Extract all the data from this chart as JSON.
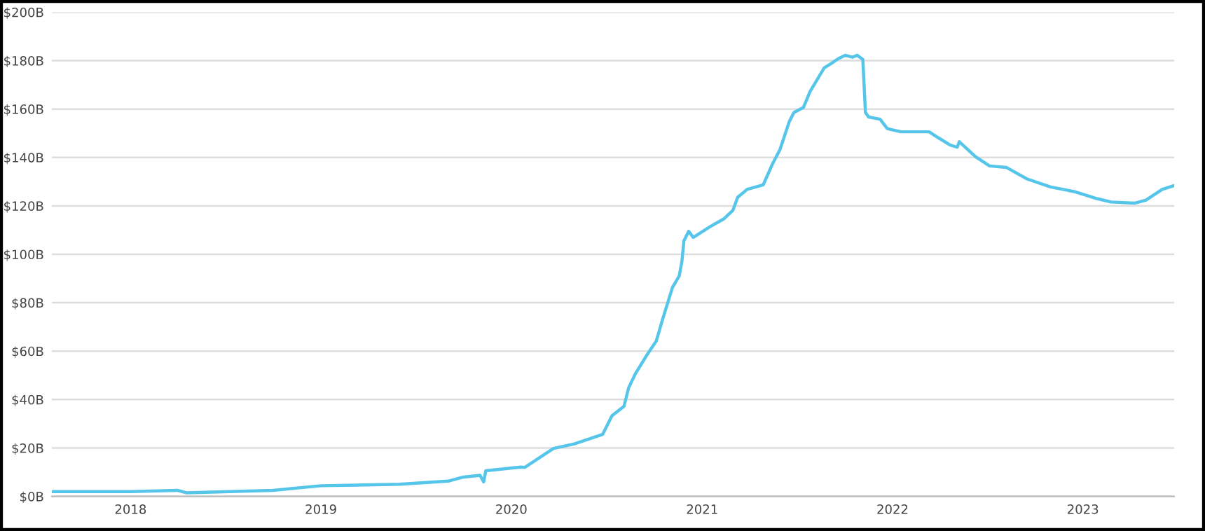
{
  "chart_data": {
    "type": "line",
    "x": [
      "2017-08-03",
      "2018-01-01",
      "2018-04-01",
      "2018-04-18",
      "2018-10-01",
      "2019-01-01",
      "2019-06-01",
      "2019-09-02",
      "2019-09-29",
      "2019-11-02",
      "2019-11-09",
      "2019-11-13",
      "2020-01-19",
      "2020-01-27",
      "2020-03-22",
      "2020-05-01",
      "2020-06-24",
      "2020-07-12",
      "2020-08-04",
      "2020-08-13",
      "2020-08-26",
      "2020-09-17",
      "2020-10-05",
      "2020-10-18",
      "2020-11-05",
      "2020-11-18",
      "2020-11-23",
      "2020-11-27",
      "2020-12-06",
      "2020-12-15",
      "2021-01-16",
      "2021-02-12",
      "2021-03-01",
      "2021-03-10",
      "2021-03-28",
      "2021-04-28",
      "2021-05-16",
      "2021-05-30",
      "2021-06-17",
      "2021-06-26",
      "2021-07-14",
      "2021-07-27",
      "2021-08-23",
      "2021-09-06",
      "2021-09-19",
      "2021-10-02",
      "2021-10-16",
      "2021-10-25",
      "2021-11-05",
      "2021-11-10",
      "2021-11-16",
      "2021-12-08",
      "2021-12-22",
      "2022-01-17",
      "2022-03-12",
      "2022-03-30",
      "2022-04-21",
      "2022-05-05",
      "2022-05-09",
      "2022-06-09",
      "2022-07-06",
      "2022-08-07",
      "2022-09-16",
      "2022-10-31",
      "2022-12-15",
      "2023-01-28",
      "2023-02-24",
      "2023-04-10",
      "2023-05-02",
      "2023-06-02",
      "2023-06-25"
    ],
    "series": [
      {
        "color": "#56c5ea",
        "values": [
          2,
          2,
          2.5,
          1.5,
          2.5,
          4.4,
          5,
          6.3,
          7.9,
          8.7,
          6,
          10.6,
          12.1,
          12,
          19.8,
          21.7,
          25.6,
          33.3,
          37.2,
          44.9,
          50.7,
          58.4,
          64.2,
          73.8,
          86.3,
          91.1,
          96.9,
          105.6,
          109.5,
          107,
          111.4,
          114.7,
          118.2,
          123.5,
          126.8,
          128.7,
          137.4,
          143.2,
          154.8,
          158.6,
          160.6,
          167.3,
          177,
          178.9,
          180.8,
          182.2,
          181.4,
          182.2,
          180.5,
          158.6,
          156.7,
          155.8,
          151.9,
          150.6,
          150.6,
          148.1,
          145.2,
          144.2,
          146.5,
          140.3,
          136.5,
          135.9,
          131.1,
          127.8,
          125.9,
          123,
          121.6,
          121.1,
          122.4,
          126.8,
          128.4
        ]
      }
    ],
    "xlim": [
      "2017-08-03",
      "2023-06-25"
    ],
    "xticks": [
      {
        "value": "2018-01-01",
        "label": "2018"
      },
      {
        "value": "2019-01-01",
        "label": "2019"
      },
      {
        "value": "2020-01-01",
        "label": "2020"
      },
      {
        "value": "2021-01-01",
        "label": "2021"
      },
      {
        "value": "2022-01-01",
        "label": "2022"
      },
      {
        "value": "2023-01-01",
        "label": "2023"
      }
    ],
    "ylim": [
      0,
      200
    ],
    "yticks": [
      {
        "value": 0,
        "label": "$0B"
      },
      {
        "value": 20,
        "label": "$20B"
      },
      {
        "value": 40,
        "label": "$40B"
      },
      {
        "value": 60,
        "label": "$60B"
      },
      {
        "value": 80,
        "label": "$80B"
      },
      {
        "value": 100,
        "label": "$100B"
      },
      {
        "value": 120,
        "label": "$120B"
      },
      {
        "value": 140,
        "label": "$140B"
      },
      {
        "value": 160,
        "label": "$160B"
      },
      {
        "value": 180,
        "label": "$180B"
      },
      {
        "value": 200,
        "label": "$200B"
      }
    ],
    "grid": "y",
    "legend": false,
    "marker": "none",
    "line_style": "solid"
  }
}
